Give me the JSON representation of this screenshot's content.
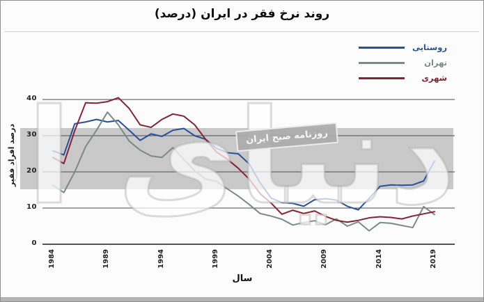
{
  "title": "روند نرخ فقر در ایران (درصد)",
  "watermark": {
    "main": "دنیای اقتصاد",
    "stamp": "روزنامه صبح ایران"
  },
  "chart_data": {
    "type": "line",
    "title": "روند نرخ فقر در ایران (درصد)",
    "xlabel": "سال",
    "ylabel": "درصد افراد فقیر",
    "x": [
      1984,
      1985,
      1986,
      1987,
      1988,
      1989,
      1990,
      1991,
      1992,
      1993,
      1994,
      1995,
      1996,
      1997,
      1998,
      1999,
      2000,
      2001,
      2002,
      2003,
      2004,
      2005,
      2006,
      2007,
      2008,
      2009,
      2010,
      2011,
      2012,
      2013,
      2014,
      2015,
      2016,
      2017,
      2018,
      2019
    ],
    "xticks": [
      1984,
      1989,
      1994,
      1999,
      2004,
      2009,
      2014,
      2019
    ],
    "yticks": [
      0,
      10,
      20,
      30,
      40
    ],
    "ylim": [
      0,
      43
    ],
    "grid": "horizontal",
    "legend_position": "top-right",
    "series": [
      {
        "name": "روستایی",
        "color": "#27509A",
        "values": [
          25.8,
          24.7,
          33.3,
          33.8,
          34.5,
          33.8,
          34.2,
          31.5,
          28.7,
          30.5,
          29.8,
          31.5,
          32.0,
          30.0,
          29.0,
          26.5,
          25.3,
          25.0,
          22.2,
          17.0,
          12.8,
          11.5,
          11.3,
          10.5,
          12.3,
          12.6,
          12.2,
          10.5,
          9.5,
          12.7,
          16.0,
          16.4,
          16.3,
          16.4,
          17.5,
          23.0
        ]
      },
      {
        "name": "تهران",
        "color": "#7A8A84",
        "values": [
          16.3,
          14.3,
          20.0,
          27.0,
          31.5,
          36.5,
          33.0,
          28.5,
          26.0,
          24.4,
          24.0,
          26.7,
          23.5,
          20.3,
          18.0,
          17.4,
          15.3,
          13.3,
          11.0,
          8.5,
          7.8,
          6.9,
          5.3,
          6.0,
          6.5,
          5.4,
          7.0,
          5.0,
          6.2,
          3.7,
          6.0,
          5.8,
          5.2,
          4.6,
          10.4,
          8.2
        ]
      },
      {
        "name": "شهری",
        "color": "#872134",
        "values": [
          24.0,
          22.3,
          31.4,
          39.1,
          39.0,
          39.4,
          40.5,
          37.5,
          33.0,
          32.3,
          34.5,
          36.0,
          35.4,
          33.0,
          29.0,
          25.5,
          23.5,
          21.0,
          18.0,
          14.0,
          11.4,
          8.3,
          9.4,
          8.5,
          9.2,
          7.7,
          6.6,
          6.1,
          6.6,
          7.3,
          7.6,
          7.4,
          7.0,
          7.8,
          8.4,
          9.0
        ]
      }
    ],
    "colors": {
      "band": "#c9c9c9",
      "gridline": "#4a4a4a",
      "baseline": "#1c1c1c"
    }
  }
}
